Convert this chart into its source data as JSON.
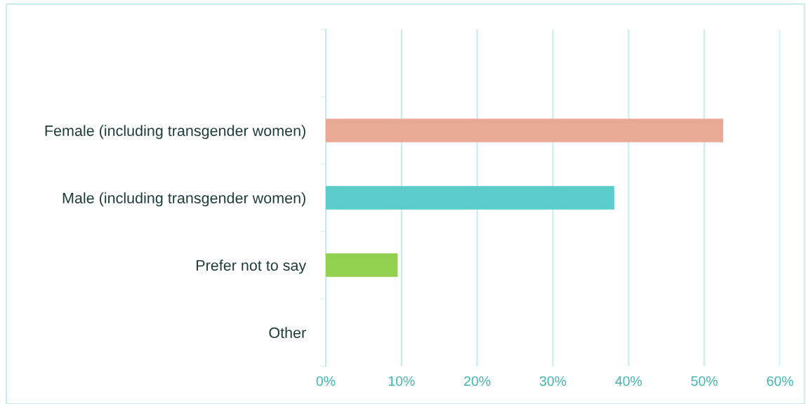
{
  "chart_data": {
    "type": "bar",
    "orientation": "horizontal",
    "categories": [
      null,
      "Female (including transgender women)",
      "Male (including transgender women)",
      "Prefer not to say",
      "Other"
    ],
    "values": [
      null,
      52.5,
      38.1,
      9.5,
      0
    ],
    "colors": [
      "#e8a994",
      "#e8a994",
      "#5bcbcb",
      "#92d050",
      "#92d050"
    ],
    "xlim": [
      0,
      60
    ],
    "xticks": [
      {
        "value": 0,
        "label": "0%"
      },
      {
        "value": 10,
        "label": "10%"
      },
      {
        "value": 20,
        "label": "20%"
      },
      {
        "value": 30,
        "label": "30%"
      },
      {
        "value": 40,
        "label": "40%"
      },
      {
        "value": 50,
        "label": "50%"
      },
      {
        "value": 60,
        "label": "60%"
      }
    ],
    "grid": "x",
    "legend": false
  }
}
